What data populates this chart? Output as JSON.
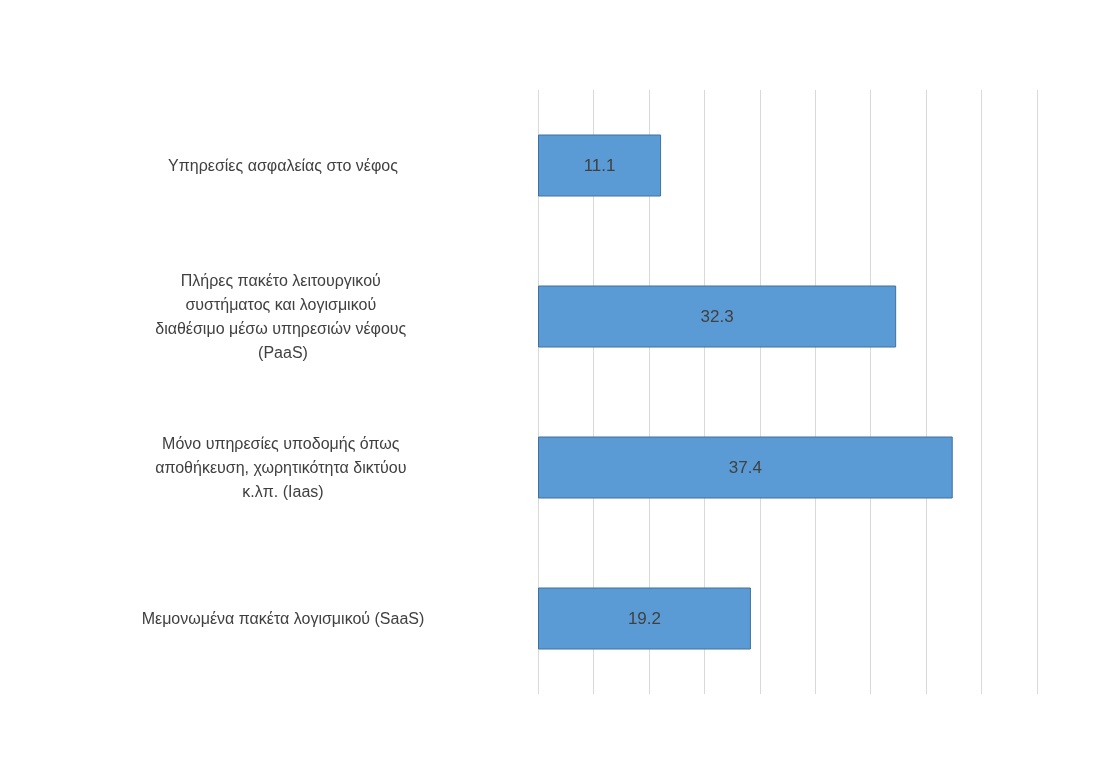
{
  "chart_data": {
    "type": "bar",
    "orientation": "horizontal",
    "categories": [
      "Υπηρεσίες ασφαλείας στο νέφος",
      "Πλήρες πακέτο λειτουργικού συστήματος και λογισμικού διαθέσιμο μέσω υπηρεσιών νέφους (PaaS)",
      "Μόνο υπηρεσίες υποδομής όπως αποθήκευση, χωρητικότητα δικτύου κ.λπ. (Iaas)",
      "Μεμονωμένα πακέτα λογισμικού (SaaS)"
    ],
    "values": [
      11.1,
      32.3,
      37.4,
      19.2
    ],
    "color": "#5b9bd5",
    "xlim": [
      0,
      45
    ],
    "xticks": [
      {
        "value": 0,
        "label": null
      },
      {
        "value": 5,
        "label": null
      },
      {
        "value": 10,
        "label": null
      },
      {
        "value": 15,
        "label": null
      },
      {
        "value": 20,
        "label": null
      },
      {
        "value": 25,
        "label": null
      },
      {
        "value": 30,
        "label": null
      },
      {
        "value": 35,
        "label": null
      },
      {
        "value": 40,
        "label": null
      },
      {
        "value": 45,
        "label": null
      }
    ],
    "tick_labels": "y",
    "grid": "x",
    "data_labels": true
  }
}
